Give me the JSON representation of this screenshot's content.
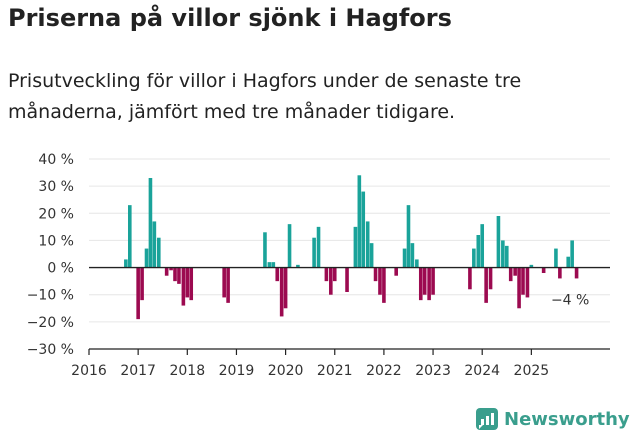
{
  "title": "Priserna på villor sjönk i Hagfors",
  "subtitle": "Prisutveckling för villor i Hagfors under de senaste tre månaderna, jämfört med tre månader tidigare.",
  "brand": "Newsworthy",
  "colors": {
    "positive": "#1aa39a",
    "negative": "#9c0a50",
    "axis": "#222222",
    "grid": "#e6e6e6",
    "brand": "#3a9e8d"
  },
  "chart_data": {
    "type": "bar",
    "title": "Priserna på villor sjönk i Hagfors",
    "xlabel": "",
    "ylabel": "",
    "ylim": [
      -30,
      40
    ],
    "yticks": [
      40,
      30,
      20,
      10,
      0,
      -10,
      -20,
      -30
    ],
    "ytick_labels": [
      "40 %",
      "30 %",
      "20 %",
      "10 %",
      "0 %",
      "−10 %",
      "−20 %",
      "−30 %"
    ],
    "xlim": [
      2016,
      2026.6
    ],
    "xticks": [
      2016,
      2017,
      2018,
      2019,
      2020,
      2021,
      2022,
      2023,
      2024,
      2025
    ],
    "xtick_labels": [
      "2016",
      "2017",
      "2018",
      "2019",
      "2020",
      "2021",
      "2022",
      "2023",
      "2024",
      "2025"
    ],
    "grid": true,
    "annotation": {
      "text": "−4 %",
      "x": 2025.83,
      "y": -4
    },
    "series": [
      {
        "name": "Prisutveckling",
        "x": [
          2016.75,
          2016.83,
          2017.0,
          2017.08,
          2017.17,
          2017.25,
          2017.33,
          2017.42,
          2017.58,
          2017.67,
          2017.75,
          2017.83,
          2017.92,
          2018.0,
          2018.08,
          2018.75,
          2018.83,
          2019.58,
          2019.67,
          2019.75,
          2019.83,
          2019.92,
          2020.0,
          2020.08,
          2020.25,
          2020.58,
          2020.67,
          2020.83,
          2020.92,
          2021.0,
          2021.25,
          2021.42,
          2021.5,
          2021.58,
          2021.67,
          2021.75,
          2021.83,
          2021.92,
          2022.0,
          2022.25,
          2022.42,
          2022.5,
          2022.58,
          2022.67,
          2022.75,
          2022.83,
          2022.92,
          2023.0,
          2023.75,
          2023.83,
          2023.92,
          2024.0,
          2024.08,
          2024.17,
          2024.33,
          2024.42,
          2024.5,
          2024.58,
          2024.67,
          2024.75,
          2024.83,
          2024.92,
          2025.0,
          2025.25,
          2025.5,
          2025.58,
          2025.75,
          2025.83,
          2025.92
        ],
        "values": [
          3,
          23,
          -19,
          -12,
          7,
          33,
          17,
          11,
          -3,
          -1,
          -5,
          -6,
          -14,
          -11,
          -12,
          -11,
          -13,
          13,
          2,
          2,
          -5,
          -18,
          -15,
          16,
          1,
          11,
          15,
          -5,
          -10,
          -5,
          -9,
          15,
          34,
          28,
          17,
          9,
          -5,
          -10,
          -13,
          -3,
          7,
          23,
          9,
          3,
          -12,
          -10,
          -12,
          -10,
          -8,
          7,
          12,
          16,
          -13,
          -8,
          19,
          10,
          8,
          -5,
          -3,
          -15,
          -10,
          -11,
          1,
          -2,
          7,
          -4,
          4,
          10,
          -4
        ]
      }
    ]
  }
}
